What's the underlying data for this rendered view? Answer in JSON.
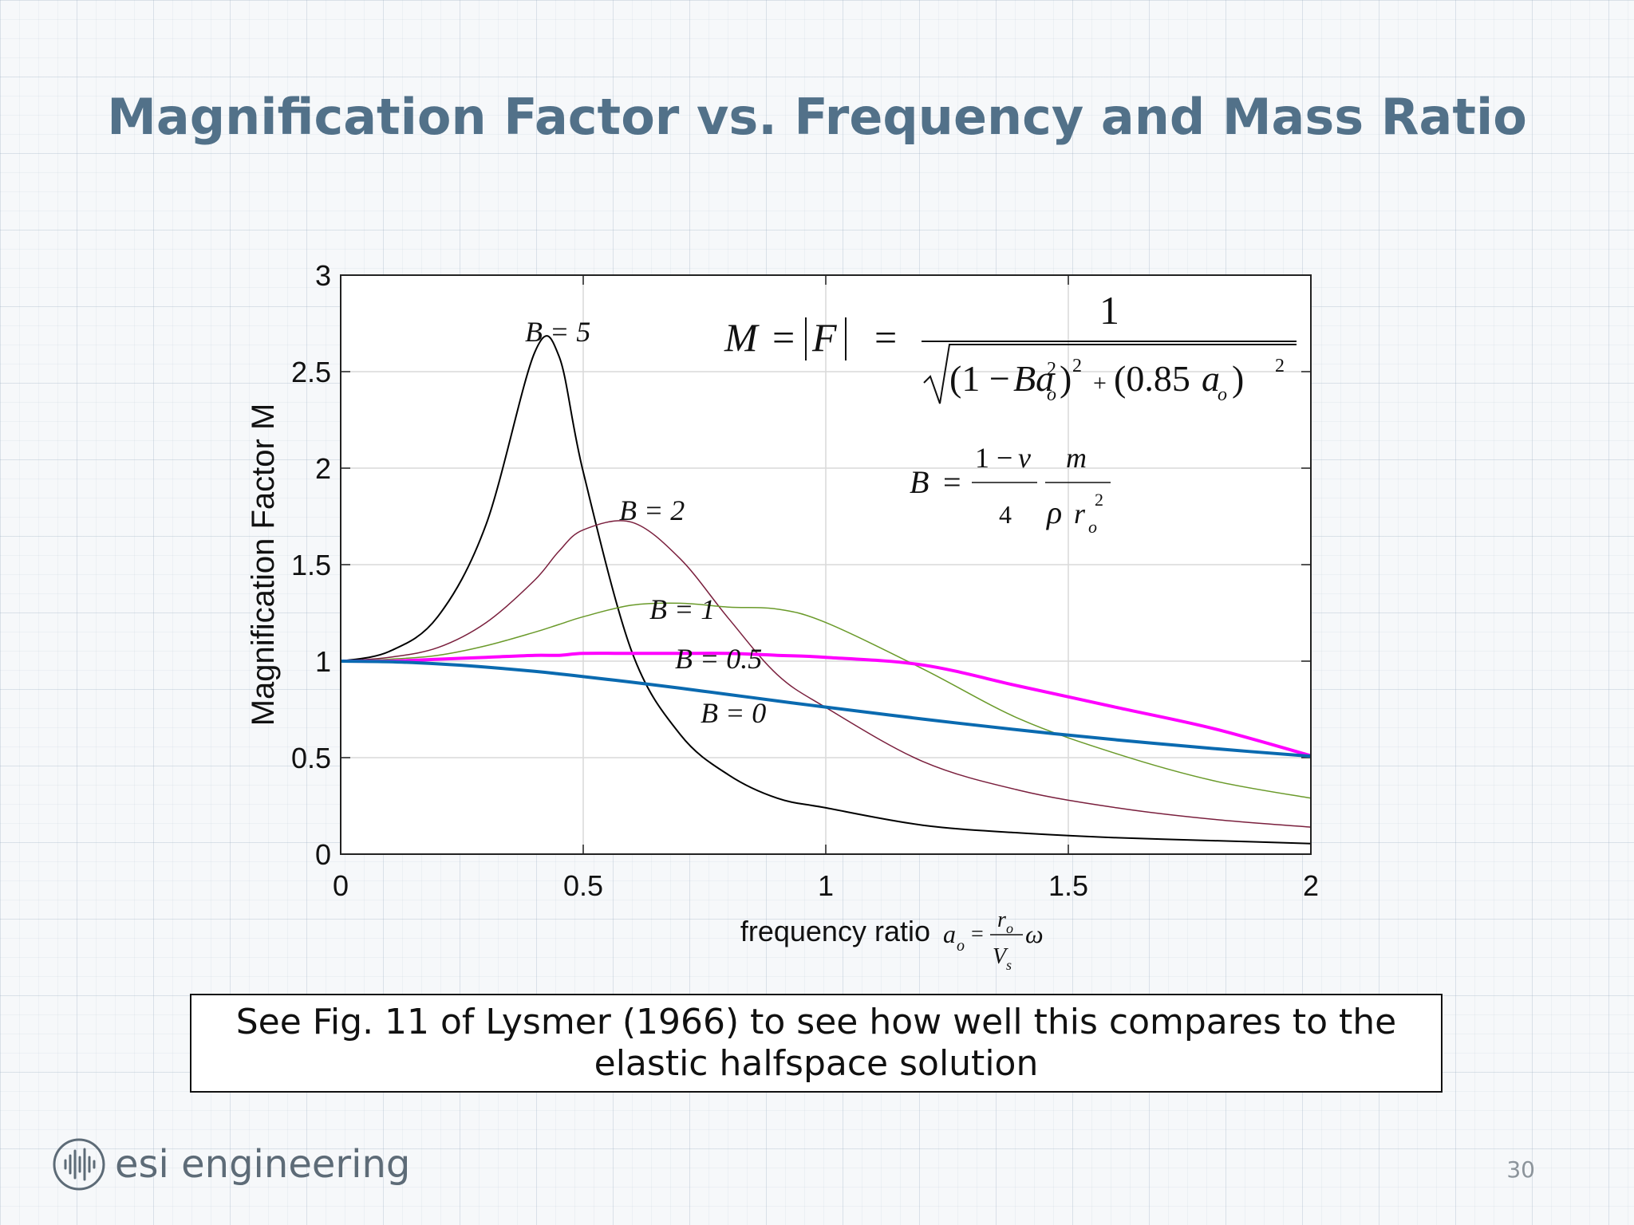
{
  "slide": {
    "title": "Magnification Factor vs. Frequency and Mass Ratio",
    "note_line1": "See Fig. 11 of Lysmer (1966) to see how well this compares to the",
    "note_line2": "elastic halfspace solution",
    "logo_text": "esi engineering",
    "page_number": "30"
  },
  "colors": {
    "title": "#527189",
    "B5": "#000000",
    "B2": "#7a1f3d",
    "B1": "#6a9a2a",
    "B05": "#ff00ff",
    "B0": "#0a6ab0"
  },
  "chart_data": {
    "type": "line",
    "ylabel": "Magnification Factor M",
    "xlabel": "frequency ratio",
    "xlim": [
      0,
      2
    ],
    "ylim": [
      0,
      3
    ],
    "xticks": [
      "0",
      "0.5",
      "1",
      "1.5",
      "2"
    ],
    "yticks": [
      "0",
      "0.5",
      "1",
      "1.5",
      "2",
      "2.5",
      "3"
    ],
    "grid": true,
    "formula": "M = |F| = 1 / sqrt((1 - B a_o^2)^2 + (0.85 a_o)^2)",
    "x": [
      0,
      0.1,
      0.2,
      0.3,
      0.4,
      0.45,
      0.5,
      0.6,
      0.7,
      0.8,
      0.9,
      1.0,
      1.2,
      1.4,
      1.6,
      1.8,
      2.0
    ],
    "series": [
      {
        "name": "B = 5",
        "values": [
          1.0,
          1.05,
          1.23,
          1.71,
          2.6,
          2.58,
          1.98,
          1.05,
          0.62,
          0.41,
          0.29,
          0.24,
          0.15,
          0.11,
          0.085,
          0.07,
          0.055
        ]
      },
      {
        "name": "B = 2",
        "values": [
          1.0,
          1.02,
          1.07,
          1.2,
          1.42,
          1.57,
          1.68,
          1.72,
          1.53,
          1.22,
          0.93,
          0.76,
          0.48,
          0.33,
          0.24,
          0.18,
          0.14
        ]
      },
      {
        "name": "B = 1",
        "values": [
          1.0,
          1.01,
          1.03,
          1.08,
          1.15,
          1.19,
          1.23,
          1.29,
          1.3,
          1.28,
          1.27,
          1.2,
          0.96,
          0.7,
          0.52,
          0.38,
          0.29
        ]
      },
      {
        "name": "B = 0.5",
        "values": [
          1.0,
          1.0,
          1.01,
          1.02,
          1.03,
          1.03,
          1.04,
          1.04,
          1.04,
          1.04,
          1.03,
          1.02,
          0.98,
          0.87,
          0.76,
          0.65,
          0.51
        ]
      },
      {
        "name": "B = 0",
        "values": [
          1.0,
          0.997,
          0.986,
          0.969,
          0.947,
          0.934,
          0.92,
          0.891,
          0.86,
          0.827,
          0.794,
          0.762,
          0.7,
          0.643,
          0.592,
          0.547,
          0.507
        ]
      }
    ]
  }
}
